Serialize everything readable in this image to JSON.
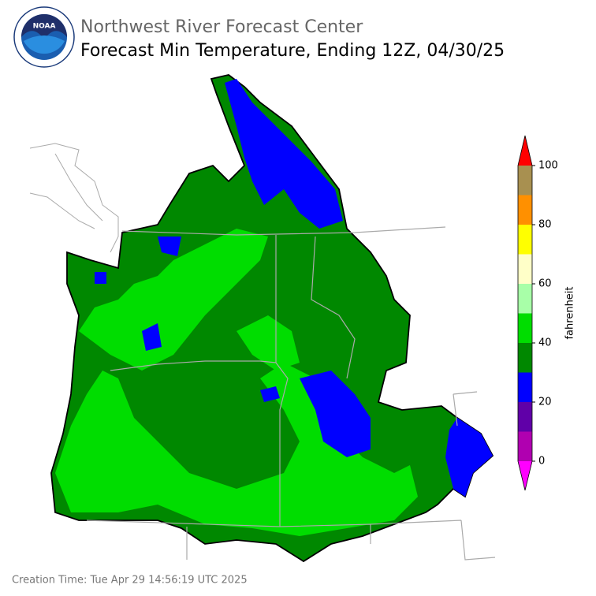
{
  "header": {
    "logo": "NOAA",
    "agency": "Northwest River Forecast Center",
    "title": "Forecast Min Temperature, Ending 12Z, 04/30/25"
  },
  "colorbar": {
    "label": "fahrenheit",
    "lim": [
      0,
      100
    ],
    "ticks": [
      0,
      20,
      40,
      60,
      80,
      100
    ],
    "bounds": [
      0,
      10,
      20,
      30,
      40,
      50,
      60,
      70,
      80,
      90,
      100
    ],
    "colors": [
      "#b000b0",
      "#6000a8",
      "#0000ff",
      "#008800",
      "#00dd00",
      "#a8ffa8",
      "#ffffc8",
      "#ffff00",
      "#ff9000",
      "#a89050"
    ],
    "under_color": "#ff00ff",
    "over_color": "#ff0000"
  },
  "footer": "Creation Time: Tue Apr 29 14:56:19 UTC 2025"
}
